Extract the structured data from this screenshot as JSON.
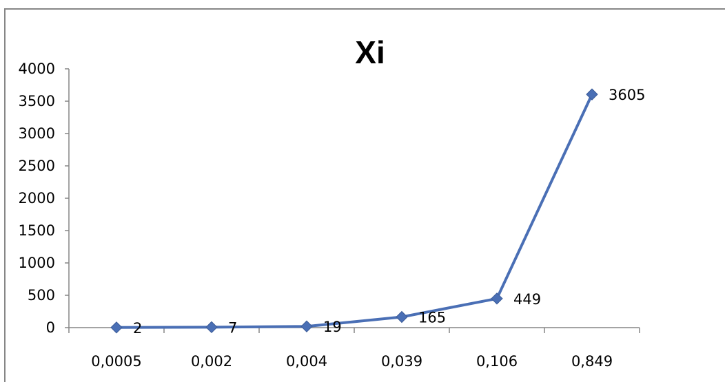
{
  "chart_data": {
    "type": "line",
    "title": "Xi",
    "xlabel": "",
    "ylabel": "",
    "categories": [
      "0,0005",
      "0,002",
      "0,004",
      "0,039",
      "0,106",
      "0,849"
    ],
    "series": [
      {
        "values": [
          2,
          7,
          19,
          165,
          449,
          3605
        ],
        "color": "#4a6fb5"
      }
    ],
    "data_labels": [
      "2",
      "7",
      "19",
      "165",
      "449",
      "3605"
    ],
    "y_ticks": [
      "0",
      "500",
      "1000",
      "1500",
      "2000",
      "2500",
      "3000",
      "3500",
      "4000"
    ],
    "ylim": [
      0,
      4000
    ],
    "grid": false,
    "legend": "none",
    "marker": "diamond"
  }
}
